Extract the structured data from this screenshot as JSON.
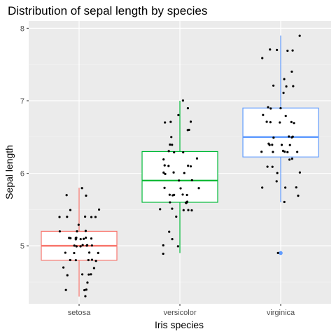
{
  "chart_data": {
    "type": "boxplot",
    "title": "Distribution of sepal length by species",
    "xlabel": "Iris species",
    "ylabel": "Sepal length",
    "categories": [
      "setosa",
      "versicolor",
      "virginica"
    ],
    "ylim": [
      4.2,
      8.1
    ],
    "yticks": [
      5,
      6,
      7,
      8
    ],
    "grid": true,
    "legend": "none",
    "colors": [
      "#F8766D",
      "#00BA38",
      "#619CFF"
    ],
    "boxes": [
      {
        "category": "setosa",
        "min": 4.3,
        "q1": 4.8,
        "median": 5.0,
        "q3": 5.2,
        "max": 5.8,
        "outliers": []
      },
      {
        "category": "versicolor",
        "min": 4.9,
        "q1": 5.6,
        "median": 5.9,
        "q3": 6.3,
        "max": 7.0,
        "outliers": []
      },
      {
        "category": "virginica",
        "min": 5.6,
        "q1": 6.225,
        "median": 6.5,
        "q3": 6.9,
        "max": 7.9,
        "outliers": [
          4.9
        ]
      }
    ],
    "points": [
      [
        4.3,
        4.4,
        4.4,
        4.4,
        4.5,
        4.6,
        4.6,
        4.6,
        4.6,
        4.7,
        4.7,
        4.8,
        4.8,
        4.8,
        4.8,
        4.8,
        4.9,
        4.9,
        4.9,
        4.9,
        5.0,
        5.0,
        5.0,
        5.0,
        5.0,
        5.0,
        5.0,
        5.0,
        5.1,
        5.1,
        5.1,
        5.1,
        5.1,
        5.1,
        5.1,
        5.1,
        5.1,
        5.2,
        5.2,
        5.2,
        5.3,
        5.4,
        5.4,
        5.4,
        5.4,
        5.4,
        5.5,
        5.5,
        5.7,
        5.7,
        5.8
      ],
      [
        4.9,
        5.0,
        5.0,
        5.1,
        5.2,
        5.4,
        5.5,
        5.5,
        5.5,
        5.5,
        5.5,
        5.6,
        5.6,
        5.6,
        5.6,
        5.6,
        5.7,
        5.7,
        5.7,
        5.7,
        5.7,
        5.8,
        5.8,
        5.8,
        5.9,
        5.9,
        6.0,
        6.0,
        6.0,
        6.0,
        6.1,
        6.1,
        6.1,
        6.1,
        6.2,
        6.2,
        6.3,
        6.3,
        6.3,
        6.4,
        6.4,
        6.5,
        6.6,
        6.6,
        6.7,
        6.7,
        6.7,
        6.8,
        6.9,
        7.0
      ],
      [
        4.9,
        5.6,
        5.7,
        5.8,
        5.8,
        5.8,
        5.9,
        6.0,
        6.0,
        6.1,
        6.1,
        6.2,
        6.2,
        6.3,
        6.3,
        6.3,
        6.3,
        6.3,
        6.3,
        6.4,
        6.4,
        6.4,
        6.4,
        6.4,
        6.5,
        6.5,
        6.5,
        6.5,
        6.7,
        6.7,
        6.7,
        6.7,
        6.7,
        6.8,
        6.8,
        6.9,
        6.9,
        6.9,
        7.1,
        7.2,
        7.2,
        7.2,
        7.3,
        7.4,
        7.6,
        7.7,
        7.7,
        7.7,
        7.7,
        7.9
      ]
    ]
  }
}
